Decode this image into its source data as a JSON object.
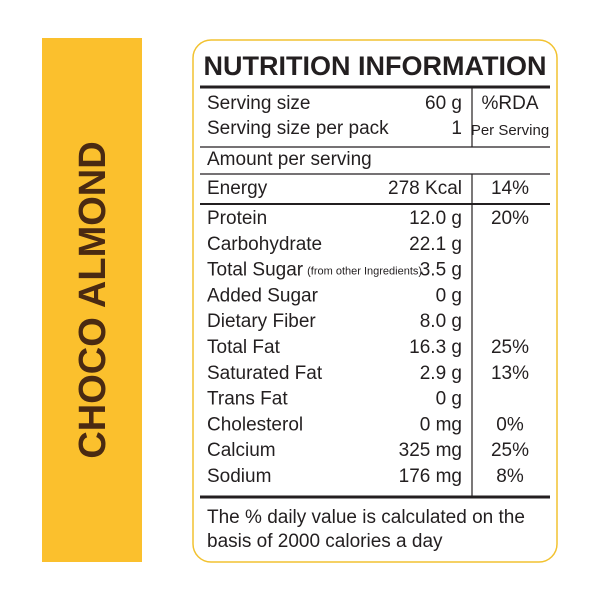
{
  "side_label": "CHOCO ALMOND",
  "panel": {
    "title": "NUTRITION INFORMATION",
    "serving": [
      {
        "name": "Serving size",
        "amount": "60 g",
        "rda": "%RDA"
      },
      {
        "name": "Serving size per pack",
        "amount": "1",
        "rda": "Per Serving"
      }
    ],
    "amount_header": "Amount per serving",
    "energy": {
      "name": "Energy",
      "amount": "278 Kcal",
      "rda": "14%"
    },
    "rows": [
      {
        "name": "Protein",
        "amount": "12.0 g",
        "rda": "20%"
      },
      {
        "name": "Carbohydrate",
        "amount": "22.1 g"
      },
      {
        "name": "Total Sugar",
        "note": "(from other Ingredients)",
        "amount": "3.5 g"
      },
      {
        "name": "Added Sugar",
        "amount": "0 g"
      },
      {
        "name": "Dietary Fiber",
        "amount": "8.0 g"
      },
      {
        "name": "Total Fat",
        "amount": "16.3 g",
        "rda": "25%"
      },
      {
        "name": "Saturated Fat",
        "amount": "2.9 g",
        "rda": "13%"
      },
      {
        "name": "Trans Fat",
        "amount": "0 g"
      },
      {
        "name": "Cholesterol",
        "amount": "0 mg",
        "rda": "0%"
      },
      {
        "name": "Calcium",
        "amount": "325 mg",
        "rda": "25%"
      },
      {
        "name": "Sodium",
        "amount": "176 mg",
        "rda": "8%"
      }
    ],
    "footer": [
      "The % daily value is calculated on the",
      "basis of 2000 calories a day"
    ]
  }
}
